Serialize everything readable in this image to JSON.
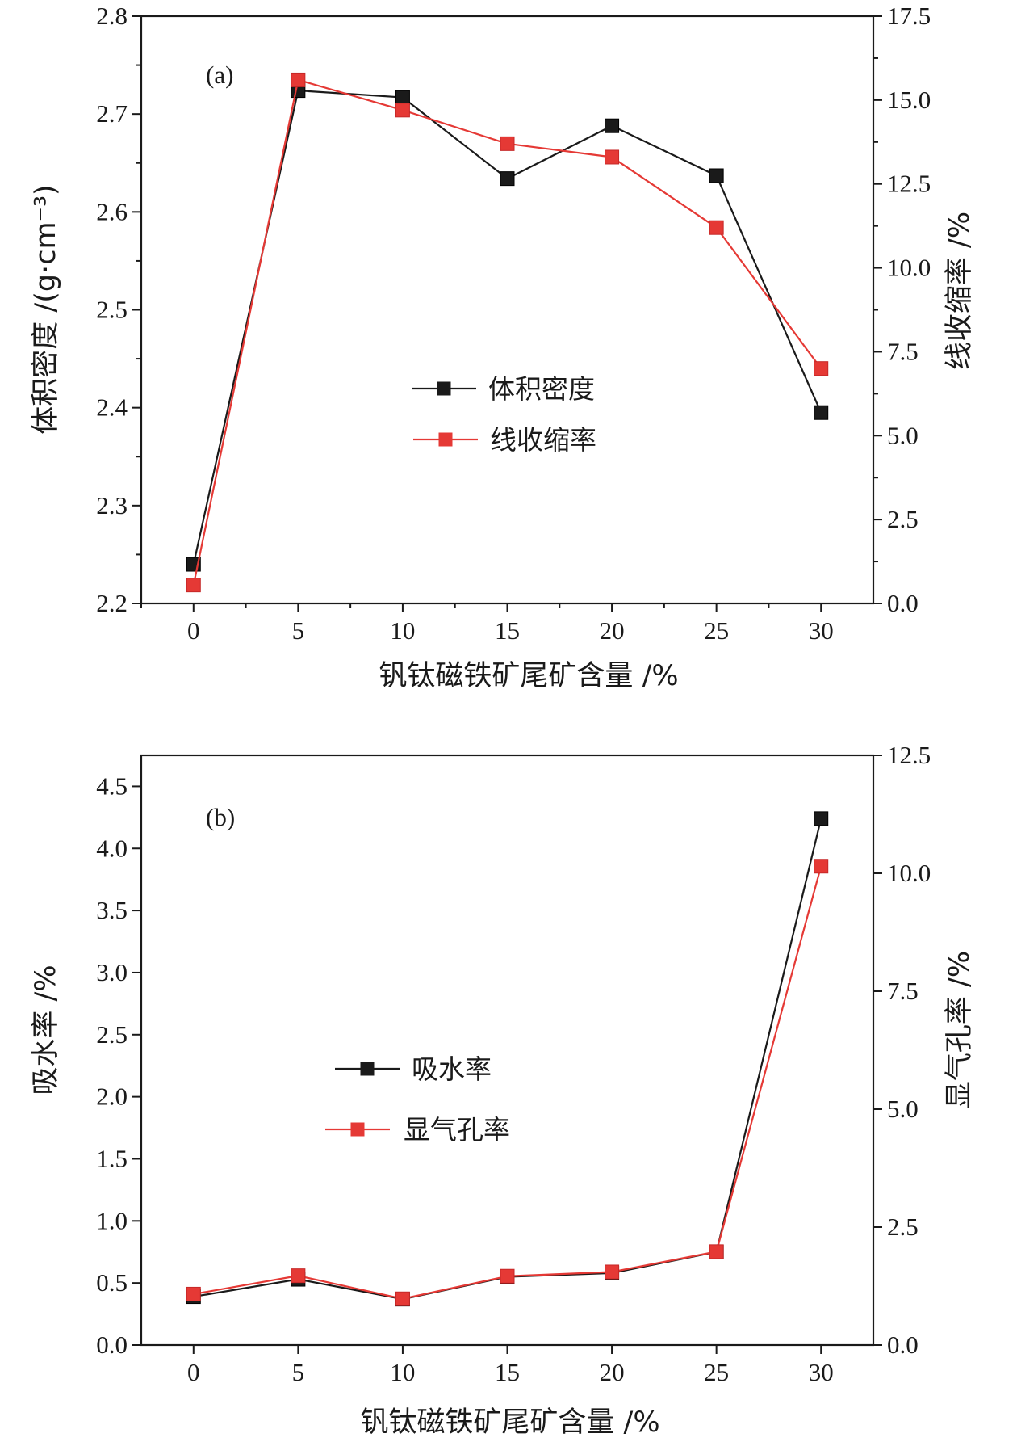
{
  "chart_data": [
    {
      "type": "line",
      "panel_label": "(a)",
      "xlabel": "钒钛磁铁矿尾矿含量 /%",
      "ylabel_left": "体积密度 /(g·cm⁻³)",
      "ylabel_right": "线收缩率 /%",
      "x": [
        0,
        5,
        10,
        15,
        20,
        25,
        30
      ],
      "xlim": [
        -2.5,
        32.5
      ],
      "ylim_left": [
        2.2,
        2.8
      ],
      "ylim_right": [
        0.0,
        17.5
      ],
      "xticks": [
        "0",
        "5",
        "10",
        "15",
        "20",
        "25",
        "30"
      ],
      "yticks_left": [
        "2.2",
        "2.3",
        "2.4",
        "2.5",
        "2.6",
        "2.7",
        "2.8"
      ],
      "yticks_right": [
        "0.0",
        "2.5",
        "5.0",
        "7.5",
        "10.0",
        "12.5",
        "15.0",
        "17.5"
      ],
      "legend_position": "center",
      "series": [
        {
          "name": "体积密度",
          "axis": "left",
          "color": "#1a1a1a",
          "values": [
            2.24,
            2.724,
            2.717,
            2.634,
            2.688,
            2.637,
            2.395
          ]
        },
        {
          "name": "线收缩率",
          "axis": "right",
          "color": "#e53935",
          "values": [
            0.55,
            15.6,
            14.7,
            13.7,
            13.3,
            11.2,
            7.0
          ]
        }
      ]
    },
    {
      "type": "line",
      "panel_label": "(b)",
      "xlabel": "钒钛磁铁矿尾矿含量 /%",
      "ylabel_left": "吸水率 /%",
      "ylabel_right": "显气孔率 /%",
      "x": [
        0,
        5,
        10,
        15,
        20,
        25,
        30
      ],
      "xlim": [
        -2.5,
        32.5
      ],
      "ylim_left": [
        0.0,
        4.75
      ],
      "ylim_right": [
        0.0,
        12.5
      ],
      "xticks": [
        "0",
        "5",
        "10",
        "15",
        "20",
        "25",
        "30"
      ],
      "yticks_left": [
        "0.0",
        "0.5",
        "1.0",
        "1.5",
        "2.0",
        "2.5",
        "3.0",
        "3.5",
        "4.0",
        "4.5"
      ],
      "yticks_right": [
        "0.0",
        "2.5",
        "5.0",
        "7.5",
        "10.0",
        "12.5"
      ],
      "legend_position": "center-left",
      "series": [
        {
          "name": "吸水率",
          "axis": "left",
          "color": "#1a1a1a",
          "values": [
            0.39,
            0.53,
            0.37,
            0.55,
            0.58,
            0.75,
            4.24
          ]
        },
        {
          "name": "显气孔率",
          "axis": "right",
          "color": "#e53935",
          "values": [
            1.08,
            1.47,
            0.98,
            1.46,
            1.55,
            1.98,
            10.15
          ]
        }
      ]
    }
  ]
}
